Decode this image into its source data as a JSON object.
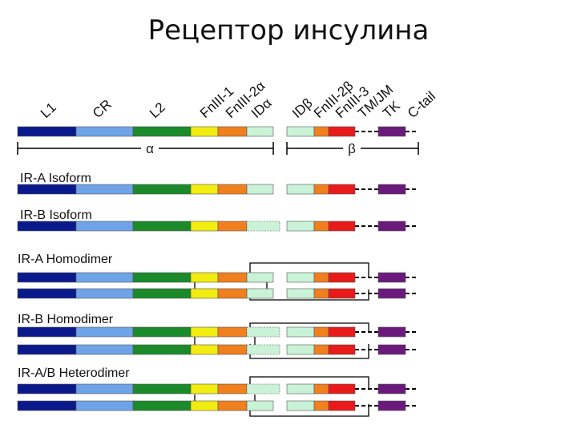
{
  "slide_title": "Рецептор инсулина",
  "domain_labels": [
    "L1",
    "CR",
    "L2",
    "FnIII-1",
    "FnIII-2α",
    "IDα",
    "IDβ",
    "FnIII-2β",
    "FnIII-3",
    "TM/JM",
    "TK",
    "C-tail"
  ],
  "subunit_labels": {
    "alpha": "α",
    "beta": "β"
  },
  "rows": [
    {
      "label": "IR-A Isoform"
    },
    {
      "label": "IR-B Isoform"
    },
    {
      "label": "IR-A Homodimer"
    },
    {
      "label": "IR-B Homodimer"
    },
    {
      "label": "IR-A/B Heterodimer"
    }
  ],
  "colors": {
    "L1": "#0a1a8c",
    "CR": "#6fa3e8",
    "L2": "#1a8a2a",
    "FnIII-1": "#f2ec10",
    "FnIII-2": "#f07f1e",
    "ID": "#c9f2d6",
    "FnIII-3": "#e81a1a",
    "TK": "#6a1a7a",
    "line": "#000000"
  }
}
